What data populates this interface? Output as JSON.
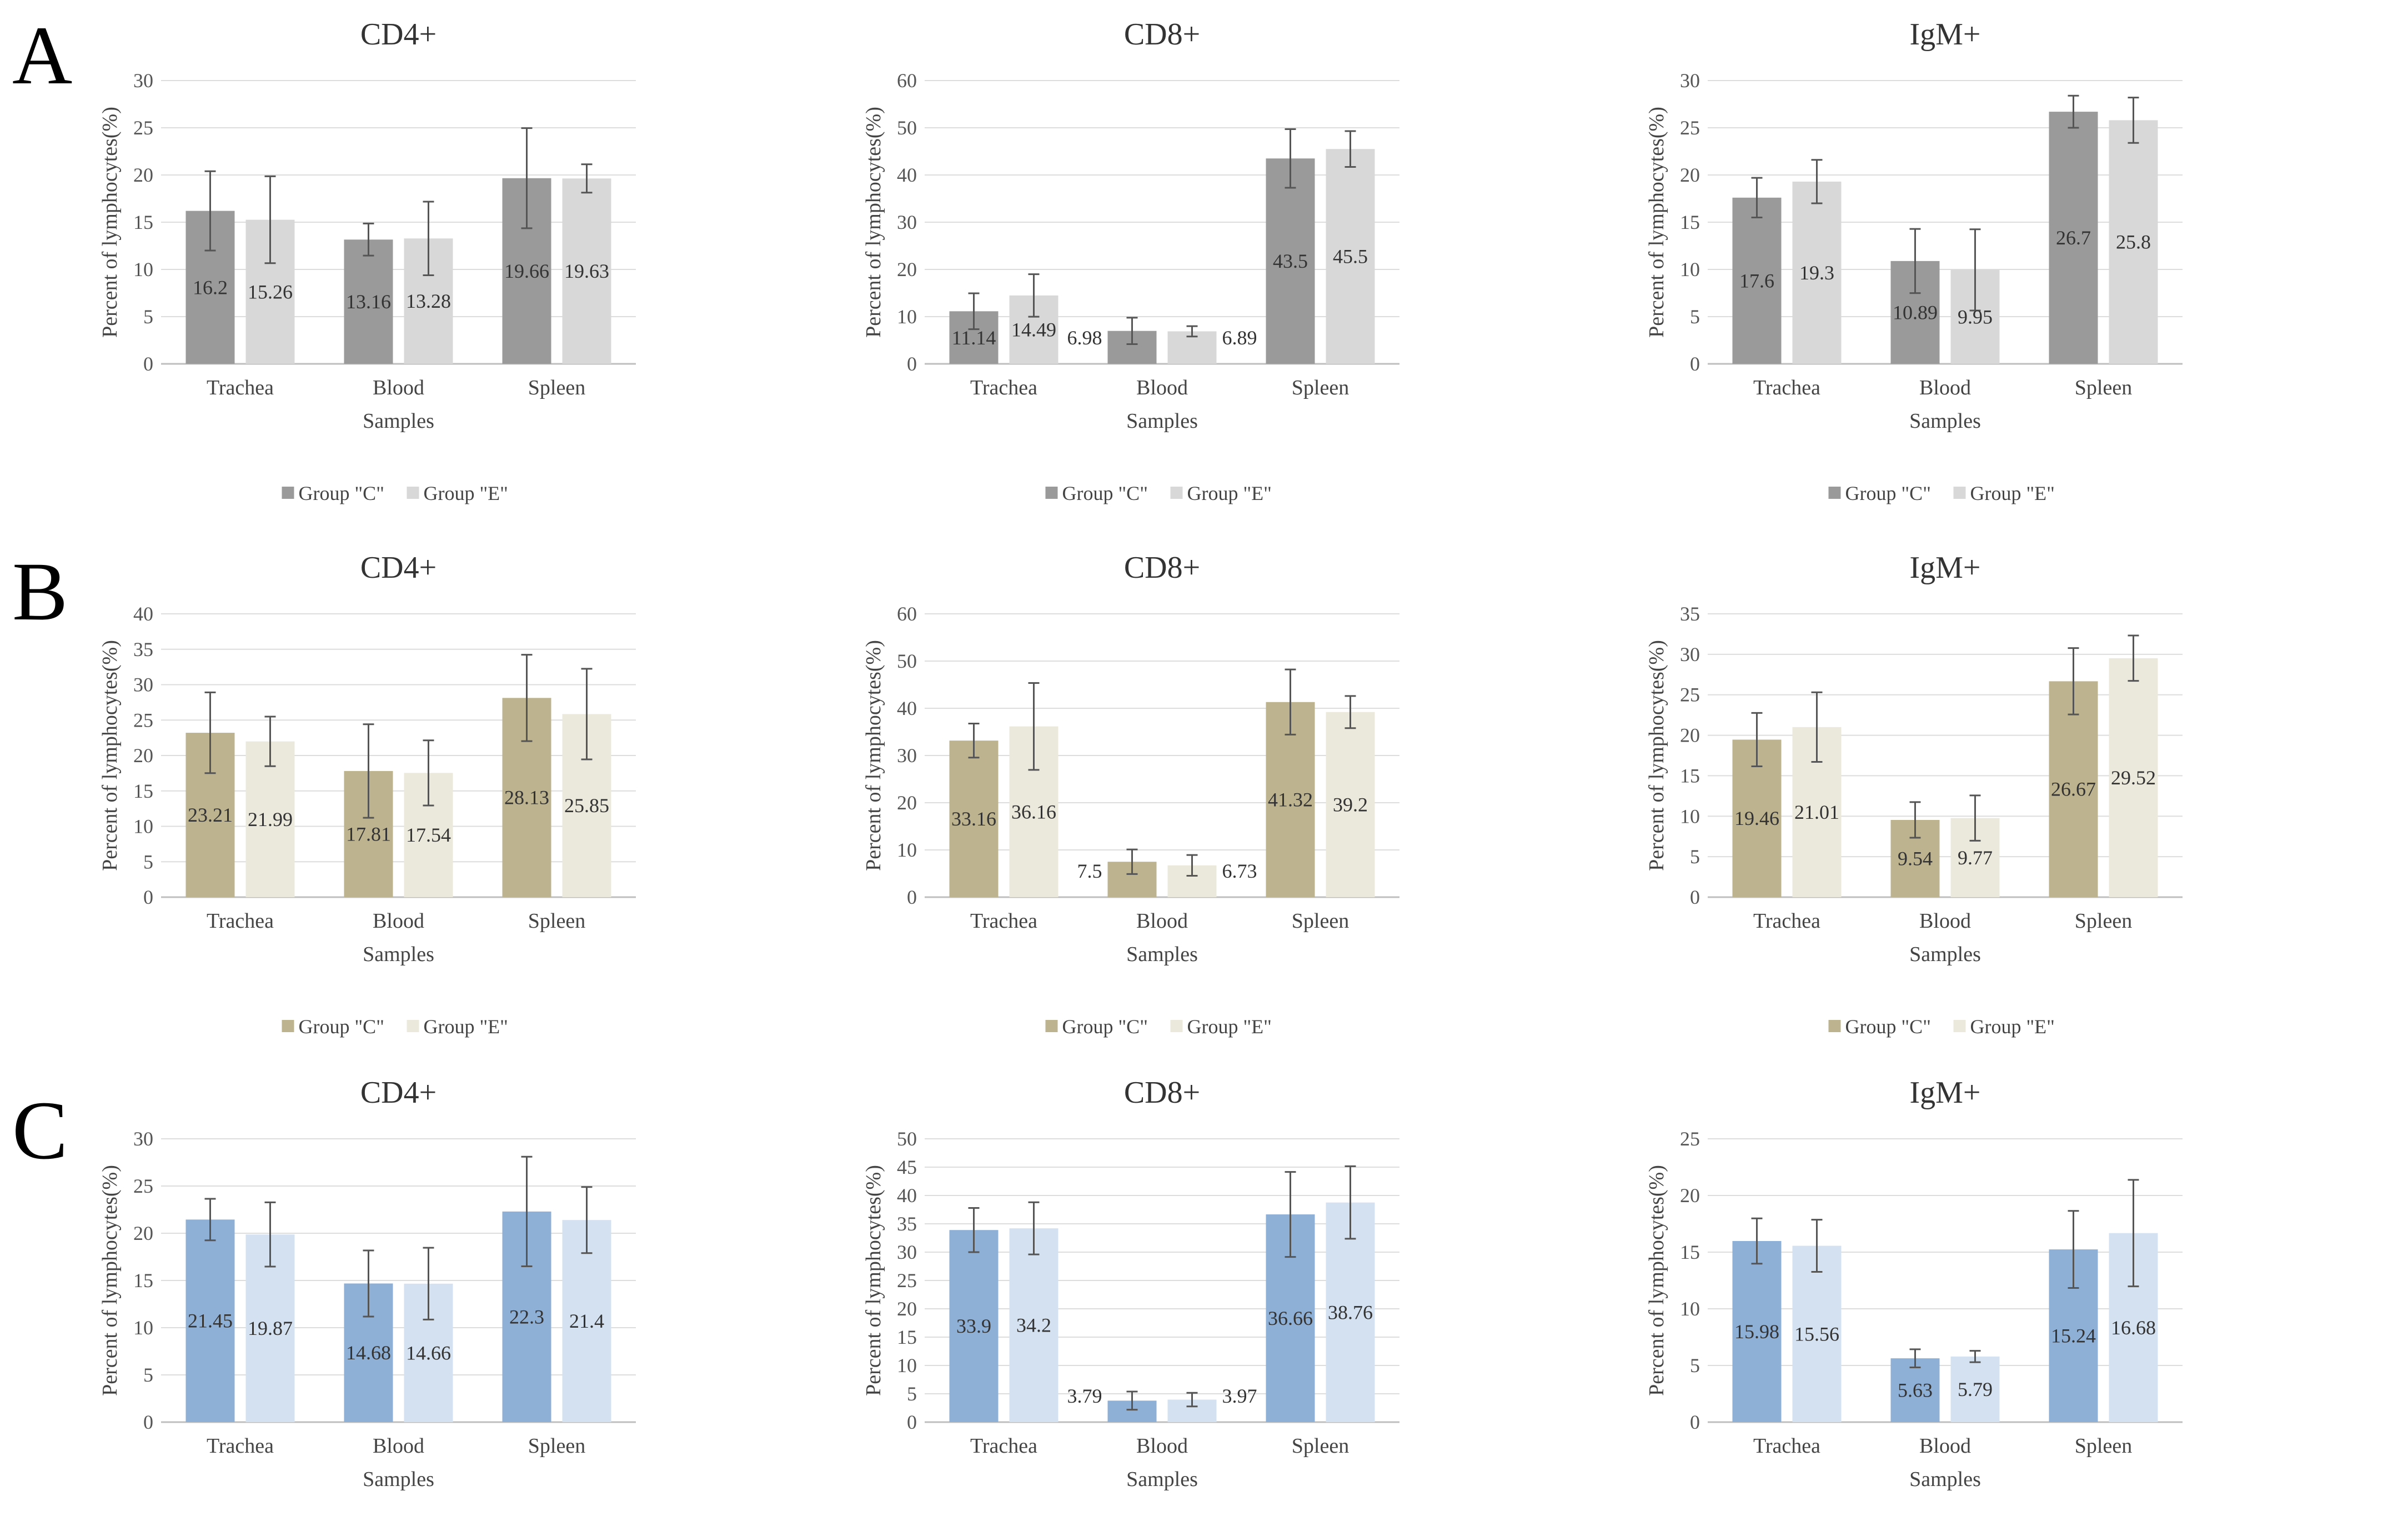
{
  "panels": [
    {
      "letter": "A",
      "colors": {
        "c": "#9a9a9a",
        "e": "#d8d8d8"
      }
    },
    {
      "letter": "B",
      "colors": {
        "c": "#bdb38f",
        "e": "#ebe8dc"
      }
    },
    {
      "letter": "C",
      "colors": {
        "c": "#8eafd6",
        "e": "#d3e1f0"
      }
    }
  ],
  "chart_data": [
    {
      "panel": "A",
      "type": "bar",
      "title": "CD4+",
      "xlabel": "Samples",
      "ylabel": "Percent of lymphocytes(%)",
      "categories": [
        "Trachea",
        "Blood",
        "Spleen"
      ],
      "ylim": [
        0,
        30
      ],
      "ystep": 5,
      "series": [
        {
          "name": "Group \"C\"",
          "values": [
            16.2,
            13.16,
            19.66
          ],
          "labels": [
            "16.2",
            "13.16",
            "19.66"
          ],
          "errors": [
            4.2,
            1.7,
            5.3
          ]
        },
        {
          "name": "Group \"E\"",
          "values": [
            15.26,
            13.28,
            19.63
          ],
          "labels": [
            "15.26",
            "13.28",
            "19.63"
          ],
          "errors": [
            4.6,
            3.9,
            1.5
          ]
        }
      ]
    },
    {
      "panel": "A",
      "type": "bar",
      "title": "CD8+",
      "xlabel": "Samples",
      "ylabel": "Percent of lymphocytes(%)",
      "categories": [
        "Trachea",
        "Blood",
        "Spleen"
      ],
      "ylim": [
        0,
        60
      ],
      "ystep": 10,
      "series": [
        {
          "name": "Group \"C\"",
          "values": [
            11.14,
            6.98,
            43.5
          ],
          "labels": [
            "11.14",
            "6.98",
            "43.5"
          ],
          "errors": [
            3.8,
            2.8,
            6.2
          ]
        },
        {
          "name": "Group \"E\"",
          "values": [
            14.49,
            6.89,
            45.5
          ],
          "labels": [
            "14.49",
            "6.89",
            "45.5"
          ],
          "errors": [
            4.5,
            1.1,
            3.8
          ]
        }
      ]
    },
    {
      "panel": "A",
      "type": "bar",
      "title": "IgM+",
      "xlabel": "Samples",
      "ylabel": "Percent of lymphocytes(%)",
      "categories": [
        "Trachea",
        "Blood",
        "Spleen"
      ],
      "ylim": [
        0,
        30
      ],
      "ystep": 5,
      "series": [
        {
          "name": "Group \"C\"",
          "values": [
            17.6,
            10.89,
            26.7
          ],
          "labels": [
            "17.6",
            "10.89",
            "26.7"
          ],
          "errors": [
            2.1,
            3.4,
            1.7
          ]
        },
        {
          "name": "Group \"E\"",
          "values": [
            19.3,
            9.95,
            25.8
          ],
          "labels": [
            "19.3",
            "9.95",
            "25.8"
          ],
          "errors": [
            2.3,
            4.3,
            2.4
          ]
        }
      ]
    },
    {
      "panel": "B",
      "type": "bar",
      "title": "CD4+",
      "xlabel": "Samples",
      "ylabel": "Percent of lymphocytes(%)",
      "categories": [
        "Trachea",
        "Blood",
        "Spleen"
      ],
      "ylim": [
        0,
        40
      ],
      "ystep": 5,
      "series": [
        {
          "name": "Group \"C\"",
          "values": [
            23.21,
            17.81,
            28.13
          ],
          "labels": [
            "23.21",
            "17.81",
            "28.13"
          ],
          "errors": [
            5.7,
            6.6,
            6.1
          ]
        },
        {
          "name": "Group \"E\"",
          "values": [
            21.99,
            17.54,
            25.85
          ],
          "labels": [
            "21.99",
            "17.54",
            "25.85"
          ],
          "errors": [
            3.5,
            4.6,
            6.4
          ]
        }
      ]
    },
    {
      "panel": "B",
      "type": "bar",
      "title": "CD8+",
      "xlabel": "Samples",
      "ylabel": "Percent of lymphocytes(%)",
      "categories": [
        "Trachea",
        "Blood",
        "Spleen"
      ],
      "ylim": [
        0,
        60
      ],
      "ystep": 10,
      "series": [
        {
          "name": "Group \"C\"",
          "values": [
            33.16,
            7.5,
            41.32
          ],
          "labels": [
            "33.16",
            "7.5",
            "41.32"
          ],
          "errors": [
            3.6,
            2.6,
            6.9
          ]
        },
        {
          "name": "Group \"E\"",
          "values": [
            36.16,
            6.73,
            39.2
          ],
          "labels": [
            "36.16",
            "6.73",
            "39.2"
          ],
          "errors": [
            9.2,
            2.2,
            3.4
          ]
        }
      ]
    },
    {
      "panel": "B",
      "type": "bar",
      "title": "IgM+",
      "xlabel": "Samples",
      "ylabel": "Percent of lymphocytes(%)",
      "categories": [
        "Trachea",
        "Blood",
        "Spleen"
      ],
      "ylim": [
        0,
        35
      ],
      "ystep": 5,
      "series": [
        {
          "name": "Group \"C\"",
          "values": [
            19.46,
            9.54,
            26.67
          ],
          "labels": [
            "19.46",
            "9.54",
            "26.67"
          ],
          "errors": [
            3.3,
            2.2,
            4.1
          ]
        },
        {
          "name": "Group \"E\"",
          "values": [
            21.01,
            9.77,
            29.52
          ],
          "labels": [
            "21.01",
            "9.77",
            "29.52"
          ],
          "errors": [
            4.3,
            2.8,
            2.8
          ]
        }
      ]
    },
    {
      "panel": "C",
      "type": "bar",
      "title": "CD4+",
      "xlabel": "Samples",
      "ylabel": "Percent of lymphocytes(%)",
      "categories": [
        "Trachea",
        "Blood",
        "Spleen"
      ],
      "ylim": [
        0,
        30
      ],
      "ystep": 5,
      "series": [
        {
          "name": "Group \"C\"",
          "values": [
            21.45,
            14.68,
            22.3
          ],
          "labels": [
            "21.45",
            "14.68",
            "22.3"
          ],
          "errors": [
            2.2,
            3.5,
            5.8
          ]
        },
        {
          "name": "Group \"E\"",
          "values": [
            19.87,
            14.66,
            21.4
          ],
          "labels": [
            "19.87",
            "14.66",
            "21.4"
          ],
          "errors": [
            3.4,
            3.8,
            3.5
          ]
        }
      ]
    },
    {
      "panel": "C",
      "type": "bar",
      "title": "CD8+",
      "xlabel": "Samples",
      "ylabel": "Percent of lymphocytes(%)",
      "categories": [
        "Trachea",
        "Blood",
        "Spleen"
      ],
      "ylim": [
        0,
        50
      ],
      "ystep": 5,
      "series": [
        {
          "name": "Group \"C\"",
          "values": [
            33.9,
            3.79,
            36.66
          ],
          "labels": [
            "33.9",
            "3.79",
            "36.66"
          ],
          "errors": [
            3.9,
            1.6,
            7.5
          ]
        },
        {
          "name": "Group \"E\"",
          "values": [
            34.2,
            3.97,
            38.76
          ],
          "labels": [
            "34.2",
            "3.97",
            "38.76"
          ],
          "errors": [
            4.6,
            1.2,
            6.4
          ]
        }
      ]
    },
    {
      "panel": "C",
      "type": "bar",
      "title": "IgM+",
      "xlabel": "Samples",
      "ylabel": "Percent of lymphocytes(%)",
      "categories": [
        "Trachea",
        "Blood",
        "Spleen"
      ],
      "ylim": [
        0,
        25
      ],
      "ystep": 5,
      "series": [
        {
          "name": "Group \"C\"",
          "values": [
            15.98,
            5.63,
            15.24
          ],
          "labels": [
            "15.98",
            "5.63",
            "15.24"
          ],
          "errors": [
            2.0,
            0.8,
            3.4
          ]
        },
        {
          "name": "Group \"E\"",
          "values": [
            15.56,
            5.79,
            16.68
          ],
          "labels": [
            "15.56",
            "5.79",
            "16.68"
          ],
          "errors": [
            2.3,
            0.5,
            4.7
          ]
        }
      ]
    }
  ]
}
